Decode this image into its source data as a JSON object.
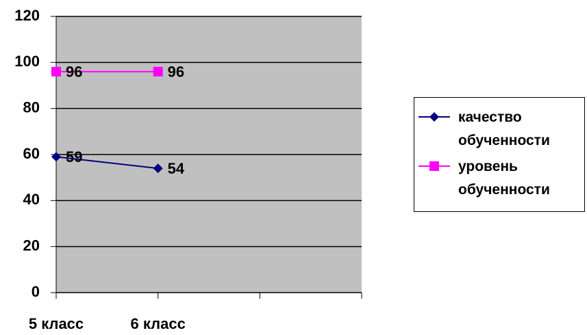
{
  "chart_data": {
    "type": "line",
    "categories": [
      "5 класс",
      "6 класс",
      null,
      null
    ],
    "series": [
      {
        "name": "качество обученности",
        "color": "#000080",
        "marker": "diamond",
        "values": [
          59,
          54,
          null,
          null
        ]
      },
      {
        "name": "уровень обученности",
        "color": "#ff00ff",
        "marker": "square",
        "values": [
          96,
          96,
          null,
          null
        ]
      }
    ],
    "ylim": [
      0,
      120
    ],
    "yticks": [
      0,
      20,
      40,
      60,
      80,
      100,
      120
    ],
    "grid": true,
    "plot_background": "#c0c0c0",
    "legend": "right",
    "data_labels": true
  }
}
